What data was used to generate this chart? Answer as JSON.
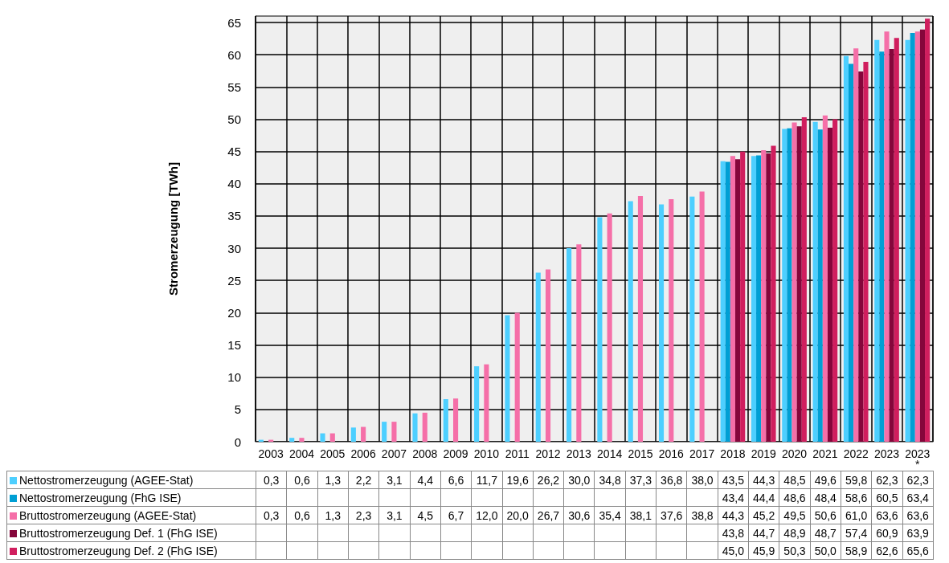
{
  "chart_data": {
    "type": "bar",
    "ylabel": "Stromerzeugung [TWh]",
    "categories": [
      "2003",
      "2004",
      "2005",
      "2006",
      "2007",
      "2008",
      "2009",
      "2010",
      "2011",
      "2012",
      "2013",
      "2014",
      "2015",
      "2016",
      "2017",
      "2018",
      "2019",
      "2020",
      "2021",
      "2022",
      "2023",
      "2023\n*"
    ],
    "series": [
      {
        "name": "Nettostromerzeugung (AGEE-Stat)",
        "color": "#4dcfff",
        "values": [
          0.3,
          0.6,
          1.3,
          2.2,
          3.1,
          4.4,
          6.6,
          11.7,
          19.6,
          26.2,
          30.0,
          34.8,
          37.3,
          36.8,
          38.0,
          43.5,
          44.3,
          48.5,
          49.6,
          59.8,
          62.3,
          62.3
        ],
        "value_labels": [
          "0,3",
          "0,6",
          "1,3",
          "2,2",
          "3,1",
          "4,4",
          "6,6",
          "11,7",
          "19,6",
          "26,2",
          "30,0",
          "34,8",
          "37,3",
          "36,8",
          "38,0",
          "43,5",
          "44,3",
          "48,5",
          "49,6",
          "59,8",
          "62,3",
          "62,3"
        ]
      },
      {
        "name": "Nettostromerzeugung (FhG ISE)",
        "color": "#009fd4",
        "values": [
          null,
          null,
          null,
          null,
          null,
          null,
          null,
          null,
          null,
          null,
          null,
          null,
          null,
          null,
          null,
          43.4,
          44.4,
          48.6,
          48.4,
          58.6,
          60.5,
          63.4
        ],
        "value_labels": [
          null,
          null,
          null,
          null,
          null,
          null,
          null,
          null,
          null,
          null,
          null,
          null,
          null,
          null,
          null,
          "43,4",
          "44,4",
          "48,6",
          "48,4",
          "58,6",
          "60,5",
          "63,4"
        ]
      },
      {
        "name": "Bruttostromerzeugung (AGEE-Stat)",
        "color": "#f56fa8",
        "values": [
          0.3,
          0.6,
          1.3,
          2.3,
          3.1,
          4.5,
          6.7,
          12.0,
          20.0,
          26.7,
          30.6,
          35.4,
          38.1,
          37.6,
          38.8,
          44.3,
          45.2,
          49.5,
          50.6,
          61.0,
          63.6,
          63.6
        ],
        "value_labels": [
          "0,3",
          "0,6",
          "1,3",
          "2,3",
          "3,1",
          "4,5",
          "6,7",
          "12,0",
          "20,0",
          "26,7",
          "30,6",
          "35,4",
          "38,1",
          "37,6",
          "38,8",
          "44,3",
          "45,2",
          "49,5",
          "50,6",
          "61,0",
          "63,6",
          "63,6"
        ]
      },
      {
        "name": "Bruttostromerzeugung Def. 1 (FhG ISE)",
        "color": "#85063b",
        "values": [
          null,
          null,
          null,
          null,
          null,
          null,
          null,
          null,
          null,
          null,
          null,
          null,
          null,
          null,
          null,
          43.8,
          44.7,
          48.9,
          48.7,
          57.4,
          60.9,
          63.9
        ],
        "value_labels": [
          null,
          null,
          null,
          null,
          null,
          null,
          null,
          null,
          null,
          null,
          null,
          null,
          null,
          null,
          null,
          "43,8",
          "44,7",
          "48,9",
          "48,7",
          "57,4",
          "60,9",
          "63,9"
        ]
      },
      {
        "name": "Bruttostromerzeugung Def. 2 (FhG ISE)",
        "color": "#d01e5e",
        "values": [
          null,
          null,
          null,
          null,
          null,
          null,
          null,
          null,
          null,
          null,
          null,
          null,
          null,
          null,
          null,
          45.0,
          45.9,
          50.3,
          50.0,
          58.9,
          62.6,
          65.6
        ],
        "value_labels": [
          null,
          null,
          null,
          null,
          null,
          null,
          null,
          null,
          null,
          null,
          null,
          null,
          null,
          null,
          null,
          "45,0",
          "45,9",
          "50,3",
          "50,0",
          "58,9",
          "62,6",
          "65,6"
        ]
      }
    ],
    "ylim": [
      0,
      66
    ],
    "yticks": [
      0,
      5,
      10,
      15,
      20,
      25,
      30,
      35,
      40,
      45,
      50,
      55,
      60,
      65
    ],
    "grid": true,
    "legend": "bottom"
  }
}
